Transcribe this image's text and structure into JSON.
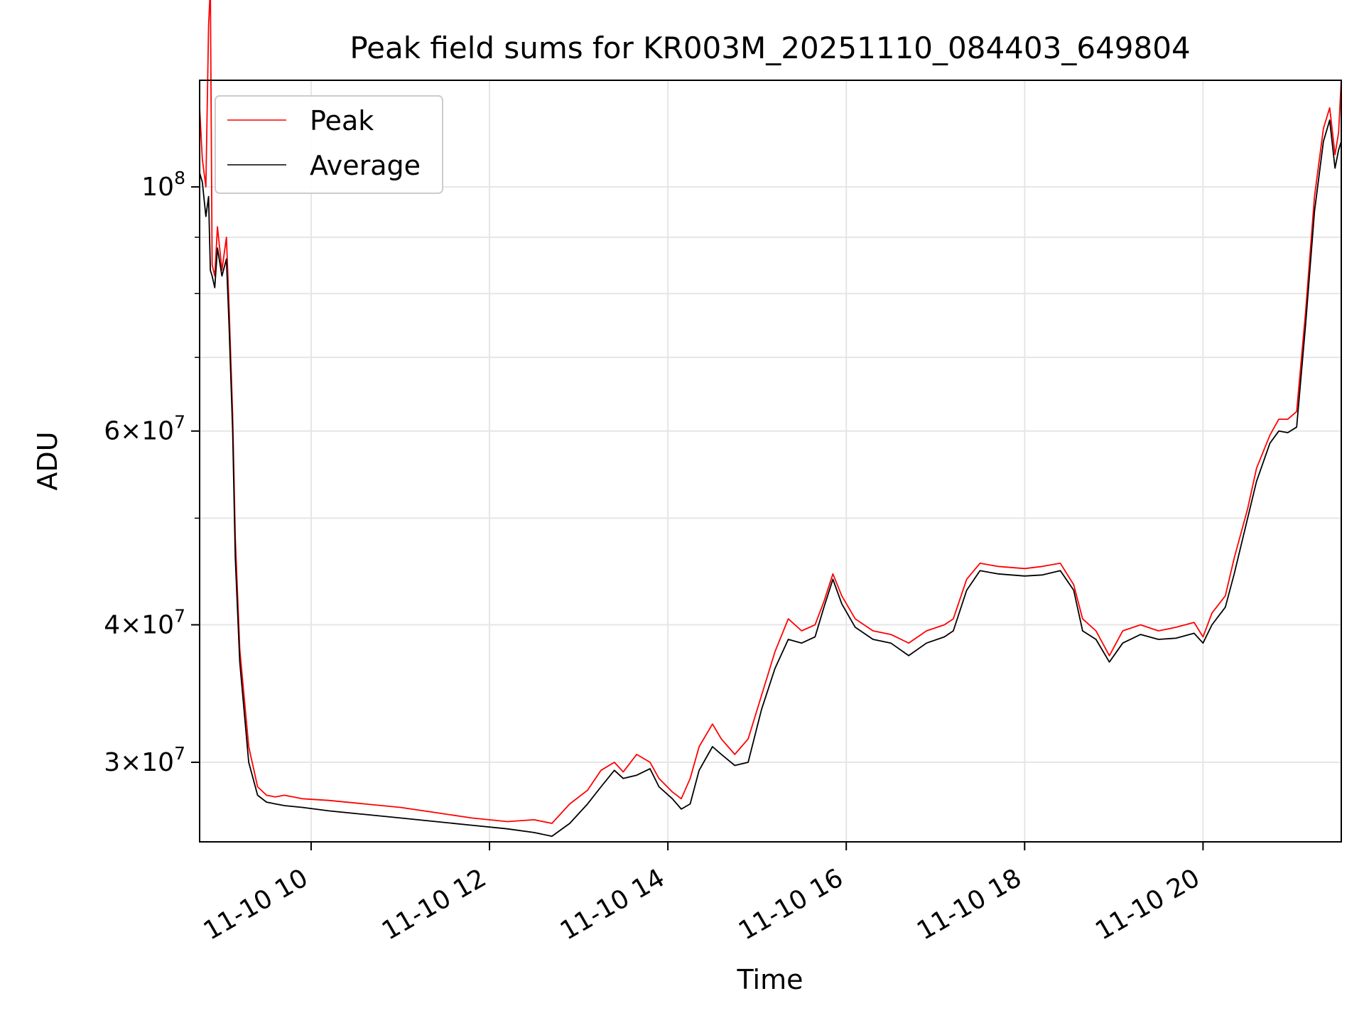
{
  "chart_data": {
    "type": "line",
    "title": "Peak field sums for KR003M_20251110_084403_649804",
    "xlabel": "Time",
    "ylabel": "ADU",
    "yscale": "log",
    "grid": true,
    "legend_position": "top-left",
    "x_units": "hours since 2025-11-10 00:00",
    "xlim": [
      8.75,
      21.55
    ],
    "ylim": [
      25400000,
      125000000
    ],
    "x_ticks": [
      {
        "value": 10,
        "label": "11-10 10"
      },
      {
        "value": 12,
        "label": "11-10 12"
      },
      {
        "value": 14,
        "label": "11-10 14"
      },
      {
        "value": 16,
        "label": "11-10 16"
      },
      {
        "value": 18,
        "label": "11-10 18"
      },
      {
        "value": 20,
        "label": "11-10 20"
      }
    ],
    "y_major_ticks": [
      {
        "value": 30000000,
        "mant": "3",
        "exp": "7"
      },
      {
        "value": 40000000,
        "mant": "4",
        "exp": "7"
      },
      {
        "value": 60000000,
        "mant": "6",
        "exp": "7"
      },
      {
        "value": 100000000,
        "mant": "",
        "exp": "8"
      }
    ],
    "y_minor_ticks": [
      50000000,
      70000000,
      80000000,
      90000000
    ],
    "series": [
      {
        "name": "Peak",
        "color": "#ff0000",
        "x": [
          8.75,
          8.78,
          8.82,
          8.85,
          8.87,
          8.89,
          8.92,
          8.95,
          9.0,
          9.05,
          9.08,
          9.12,
          9.15,
          9.2,
          9.3,
          9.4,
          9.5,
          9.6,
          9.7,
          9.9,
          10.2,
          10.6,
          11.0,
          11.4,
          11.8,
          12.2,
          12.5,
          12.7,
          12.9,
          13.1,
          13.25,
          13.4,
          13.5,
          13.65,
          13.8,
          13.9,
          14.05,
          14.15,
          14.25,
          14.35,
          14.5,
          14.6,
          14.75,
          14.9,
          15.05,
          15.2,
          15.35,
          15.5,
          15.65,
          15.75,
          15.85,
          15.95,
          16.1,
          16.3,
          16.5,
          16.7,
          16.9,
          17.1,
          17.2,
          17.35,
          17.5,
          17.7,
          18.0,
          18.2,
          18.4,
          18.55,
          18.65,
          18.8,
          18.95,
          19.1,
          19.3,
          19.5,
          19.7,
          19.9,
          20.0,
          20.1,
          20.25,
          20.35,
          20.5,
          20.6,
          20.75,
          20.85,
          20.95,
          21.05,
          21.15,
          21.25,
          21.35,
          21.42,
          21.48,
          21.52,
          21.55
        ],
        "y": [
          118000000,
          106000000,
          100000000,
          140000000,
          152000000,
          85000000,
          83000000,
          92000000,
          84000000,
          90000000,
          78000000,
          62000000,
          48000000,
          38000000,
          31000000,
          28500000,
          28000000,
          27900000,
          28000000,
          27800000,
          27700000,
          27500000,
          27300000,
          27000000,
          26700000,
          26500000,
          26600000,
          26400000,
          27500000,
          28300000,
          29500000,
          30000000,
          29400000,
          30500000,
          30000000,
          29000000,
          28200000,
          27800000,
          29000000,
          31000000,
          32500000,
          31500000,
          30500000,
          31500000,
          34500000,
          37800000,
          40500000,
          39500000,
          40000000,
          42000000,
          44500000,
          42500000,
          40500000,
          39500000,
          39200000,
          38500000,
          39500000,
          40000000,
          40500000,
          44000000,
          45500000,
          45200000,
          45000000,
          45200000,
          45500000,
          43500000,
          40500000,
          39500000,
          37500000,
          39500000,
          40000000,
          39500000,
          39800000,
          40200000,
          39000000,
          41000000,
          42500000,
          46000000,
          51000000,
          55500000,
          59500000,
          61500000,
          61500000,
          62500000,
          77000000,
          98000000,
          113000000,
          118000000,
          107000000,
          112000000,
          125000000
        ]
      },
      {
        "name": "Average",
        "color": "#000000",
        "x": [
          8.75,
          8.78,
          8.82,
          8.85,
          8.87,
          8.89,
          8.92,
          8.95,
          9.0,
          9.05,
          9.08,
          9.12,
          9.15,
          9.2,
          9.3,
          9.4,
          9.5,
          9.6,
          9.7,
          9.9,
          10.2,
          10.6,
          11.0,
          11.4,
          11.8,
          12.2,
          12.5,
          12.7,
          12.9,
          13.1,
          13.25,
          13.4,
          13.5,
          13.65,
          13.8,
          13.9,
          14.05,
          14.15,
          14.25,
          14.35,
          14.5,
          14.6,
          14.75,
          14.9,
          15.05,
          15.2,
          15.35,
          15.5,
          15.65,
          15.75,
          15.85,
          15.95,
          16.1,
          16.3,
          16.5,
          16.7,
          16.9,
          17.1,
          17.2,
          17.35,
          17.5,
          17.7,
          18.0,
          18.2,
          18.4,
          18.55,
          18.65,
          18.8,
          18.95,
          19.1,
          19.3,
          19.5,
          19.7,
          19.9,
          20.0,
          20.1,
          20.25,
          20.35,
          20.5,
          20.6,
          20.75,
          20.85,
          20.95,
          21.05,
          21.15,
          21.25,
          21.35,
          21.42,
          21.48,
          21.52,
          21.55
        ],
        "y": [
          103000000,
          101000000,
          94000000,
          98000000,
          84000000,
          83000000,
          81000000,
          88000000,
          83000000,
          86000000,
          75000000,
          60000000,
          46000000,
          37000000,
          30000000,
          28000000,
          27600000,
          27500000,
          27400000,
          27300000,
          27100000,
          26900000,
          26700000,
          26500000,
          26300000,
          26100000,
          25900000,
          25700000,
          26400000,
          27500000,
          28500000,
          29500000,
          29000000,
          29200000,
          29600000,
          28500000,
          27800000,
          27200000,
          27500000,
          29500000,
          31000000,
          30500000,
          29800000,
          30000000,
          33500000,
          36500000,
          38800000,
          38500000,
          39000000,
          41500000,
          44000000,
          41800000,
          39800000,
          38800000,
          38500000,
          37500000,
          38500000,
          39000000,
          39500000,
          43000000,
          44800000,
          44500000,
          44300000,
          44400000,
          44800000,
          43000000,
          39500000,
          38800000,
          37000000,
          38500000,
          39200000,
          38800000,
          38900000,
          39300000,
          38500000,
          40000000,
          41500000,
          44500000,
          50000000,
          54000000,
          58500000,
          60000000,
          59800000,
          60500000,
          75000000,
          95000000,
          110000000,
          115000000,
          104000000,
          108000000,
          110000000
        ]
      }
    ]
  }
}
